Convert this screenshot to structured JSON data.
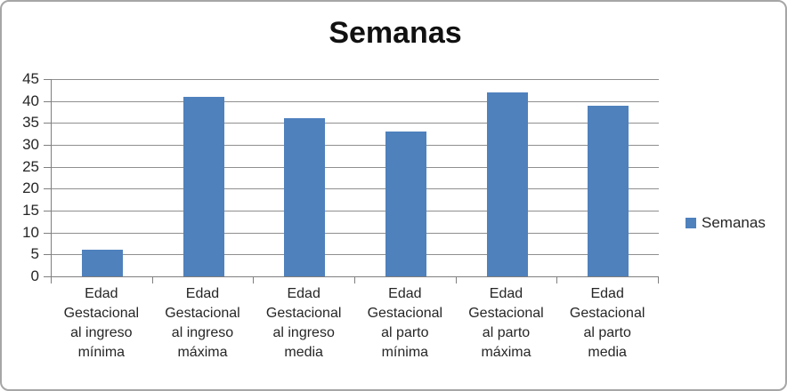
{
  "chart_data": {
    "type": "bar",
    "title": "Semanas",
    "categories": [
      "Edad\nGestacional\nal ingreso\nmínima",
      "Edad\nGestacional\nal ingreso\nmáxima",
      "Edad\nGestacional\nal ingreso\nmedia",
      "Edad\nGestacional\nal parto\nmínima",
      "Edad\nGestacional\nal parto\nmáxima",
      "Edad\nGestacional\nal parto\nmedia"
    ],
    "series": [
      {
        "name": "Semanas",
        "values": [
          6,
          41,
          36,
          33,
          42,
          39
        ]
      }
    ],
    "xlabel": "",
    "ylabel": "",
    "ylim": [
      0,
      45
    ],
    "ytick_step": 5,
    "yticks": [
      45,
      40,
      35,
      30,
      25,
      20,
      15,
      10,
      5,
      0
    ],
    "grid": true,
    "legend": {
      "position": "right",
      "label": "Semanas"
    },
    "colors": {
      "bar": "#4f81bd",
      "gridline": "#8f8f8f",
      "axis": "#7f7f7f",
      "text": "#262626",
      "title": "#111111",
      "border": "#a6a6a6",
      "background": "#ffffff"
    }
  }
}
